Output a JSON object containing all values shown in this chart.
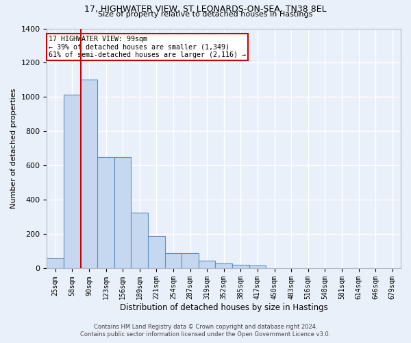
{
  "title_line1": "17, HIGHWATER VIEW, ST LEONARDS-ON-SEA, TN38 8EL",
  "title_line2": "Size of property relative to detached houses in Hastings",
  "xlabel": "Distribution of detached houses by size in Hastings",
  "ylabel": "Number of detached properties",
  "categories": [
    "25sqm",
    "58sqm",
    "90sqm",
    "123sqm",
    "156sqm",
    "189sqm",
    "221sqm",
    "254sqm",
    "287sqm",
    "319sqm",
    "352sqm",
    "385sqm",
    "417sqm",
    "450sqm",
    "483sqm",
    "516sqm",
    "548sqm",
    "581sqm",
    "614sqm",
    "646sqm",
    "679sqm"
  ],
  "values": [
    62,
    1015,
    1100,
    648,
    648,
    325,
    188,
    88,
    88,
    45,
    28,
    22,
    18,
    0,
    0,
    0,
    0,
    0,
    0,
    0,
    0
  ],
  "bar_color": "#c5d8f0",
  "bar_edge_color": "#5a8fc0",
  "vline_position": 1.5,
  "vline_color": "#cc0000",
  "annotation_text": "17 HIGHWATER VIEW: 99sqm\n← 39% of detached houses are smaller (1,349)\n61% of semi-detached houses are larger (2,116) →",
  "annotation_box_color": "#ffffff",
  "annotation_box_edge": "#cc0000",
  "ylim": [
    0,
    1400
  ],
  "yticks": [
    0,
    200,
    400,
    600,
    800,
    1000,
    1200,
    1400
  ],
  "footer_line1": "Contains HM Land Registry data © Crown copyright and database right 2024.",
  "footer_line2": "Contains public sector information licensed under the Open Government Licence v3.0.",
  "bg_color": "#eaf0f9",
  "grid_color": "#d0daea"
}
